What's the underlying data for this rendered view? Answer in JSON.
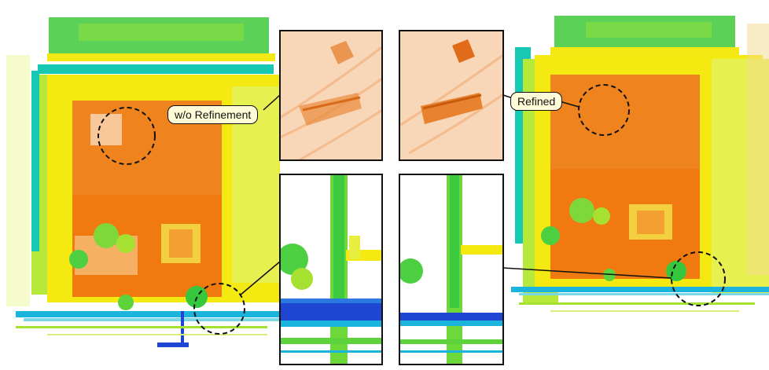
{
  "figure": {
    "label_without": "w/o Refinement",
    "label_refined": "Refined"
  },
  "colors": {
    "orange": "#f07a10",
    "yellow": "#f5ee10",
    "lime": "#a8e61e",
    "green": "#36c83c",
    "teal": "#16c8b4",
    "cyan": "#1ab4dc",
    "blue": "#1e46d2",
    "label_bg": "#fffdd8"
  }
}
